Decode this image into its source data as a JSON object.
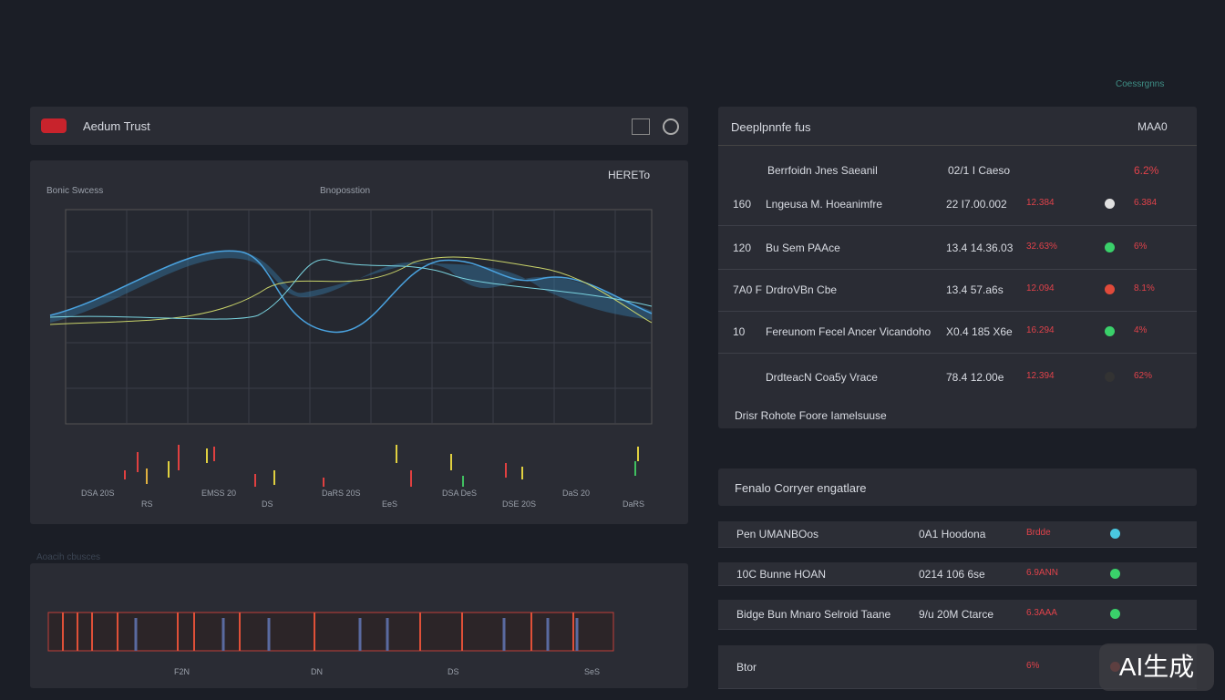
{
  "header": {
    "brand": "Aedum Trust",
    "top_right": "Coessrgnns"
  },
  "main_panel": {
    "label_left": "Bonic Swcess",
    "label_mid": "Bnoposstion",
    "label_right": "HERETo",
    "x_labels": [
      "DSA 20S",
      "RS",
      "EMSS 20",
      "DS",
      "DaRS 20S",
      "EeS",
      "DSA DeS",
      "DSE 20S",
      "DaS 20",
      "DaRS"
    ]
  },
  "lower_panel": {
    "label": "Aoacih cbusces",
    "x_labels": [
      "F2N",
      "DN",
      "DS",
      "SeS"
    ]
  },
  "table": {
    "title": "Deeplpnnfe fus",
    "title_right": "MAA0",
    "header": [
      "Berrfoidn Jnes Saeanil",
      "02/1 I Caeso",
      "6.2%"
    ],
    "rows": [
      [
        "160",
        "Lngeusa M. Hoeanimfre",
        "22 I7.00.002",
        "12.384",
        "6.384"
      ],
      [
        "120",
        "Bu Sem PAAce",
        "13.4 14.36.03",
        "32.63%",
        "6%"
      ],
      [
        "7A0 F",
        "DrdroVBn Cbe",
        "13.4 57.a6s",
        "12.094",
        "8.1%"
      ],
      [
        "10",
        "Fereunom Fecel Ancer Vicandoho",
        "X0.4 185 X6e",
        "16.294",
        "4%"
      ],
      [
        "",
        "DrdteacN Coa5y Vrace",
        "78.4 12.00e",
        "12.394",
        "62%"
      ]
    ],
    "footer": "Drisr Rohote Foore Iamelsuuse"
  },
  "table2": {
    "title": "Fenalo Corryer engatlare",
    "rows": [
      [
        "Pen UMANBOos",
        "0A1 Hoodona",
        "Brdde",
        ""
      ],
      [
        "10C  Bunne HOAN",
        "0214 106 6se",
        "6.9ANN",
        ""
      ],
      [
        "Bidge Bun Mnaro Selroid Taane",
        "9/u  20M Ctarce",
        "6.3AAA",
        ""
      ],
      [
        "Btor",
        "",
        "6%",
        ""
      ]
    ]
  },
  "watermark": "AI生成"
}
